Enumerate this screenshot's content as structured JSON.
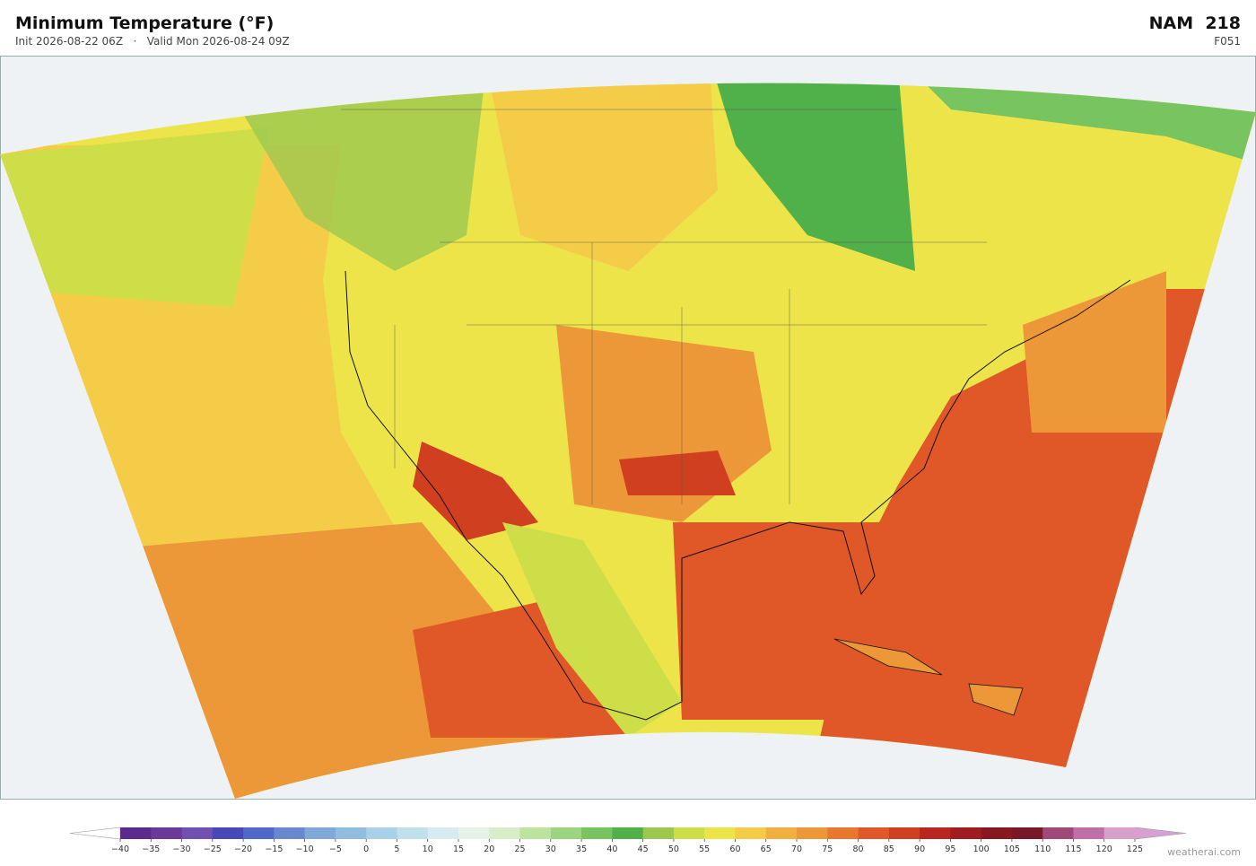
{
  "header": {
    "title": "Minimum Temperature  (°F)",
    "subtitle": "Init 2026-08-22 06Z   ·   Valid Mon 2026-08-24 09Z",
    "model": "NAM  218",
    "frame": "F051"
  },
  "colorbar": {
    "ticks": [
      {
        "value": -40,
        "label": "−40"
      },
      {
        "value": -35,
        "label": "−35"
      },
      {
        "value": -30,
        "label": "−30"
      },
      {
        "value": -25,
        "label": "−25"
      },
      {
        "value": -20,
        "label": "−20"
      },
      {
        "value": -15,
        "label": "−15"
      },
      {
        "value": -10,
        "label": "−10"
      },
      {
        "value": -5,
        "label": "−5"
      },
      0,
      5,
      10,
      15,
      20,
      25,
      30,
      35,
      40,
      45,
      50,
      55,
      60,
      65,
      70,
      75,
      80,
      85,
      90,
      95,
      100,
      105,
      110,
      115,
      120,
      125
    ],
    "colors": [
      "#5b2a8e",
      "#6a3a9a",
      "#7050b0",
      "#4848b8",
      "#5068c8",
      "#6a88d0",
      "#80a8d8",
      "#90bce0",
      "#a8d0e8",
      "#c0e0ec",
      "#d6ecf0",
      "#e4f2e8",
      "#d8eec8",
      "#bce4a0",
      "#9cd480",
      "#78c460",
      "#50b04a",
      "#9cc850",
      "#cede48",
      "#ece448",
      "#f4cc48",
      "#f0b040",
      "#ec9838",
      "#e87830",
      "#e05828",
      "#d04020",
      "#b82820",
      "#a01c20",
      "#881820",
      "#781828",
      "#a04878",
      "#c070a8",
      "#d8a0c8"
    ],
    "under_color": "#ffffff",
    "over_color": "#d8a0d0"
  },
  "footer": {
    "credit": "weatherai.com"
  }
}
